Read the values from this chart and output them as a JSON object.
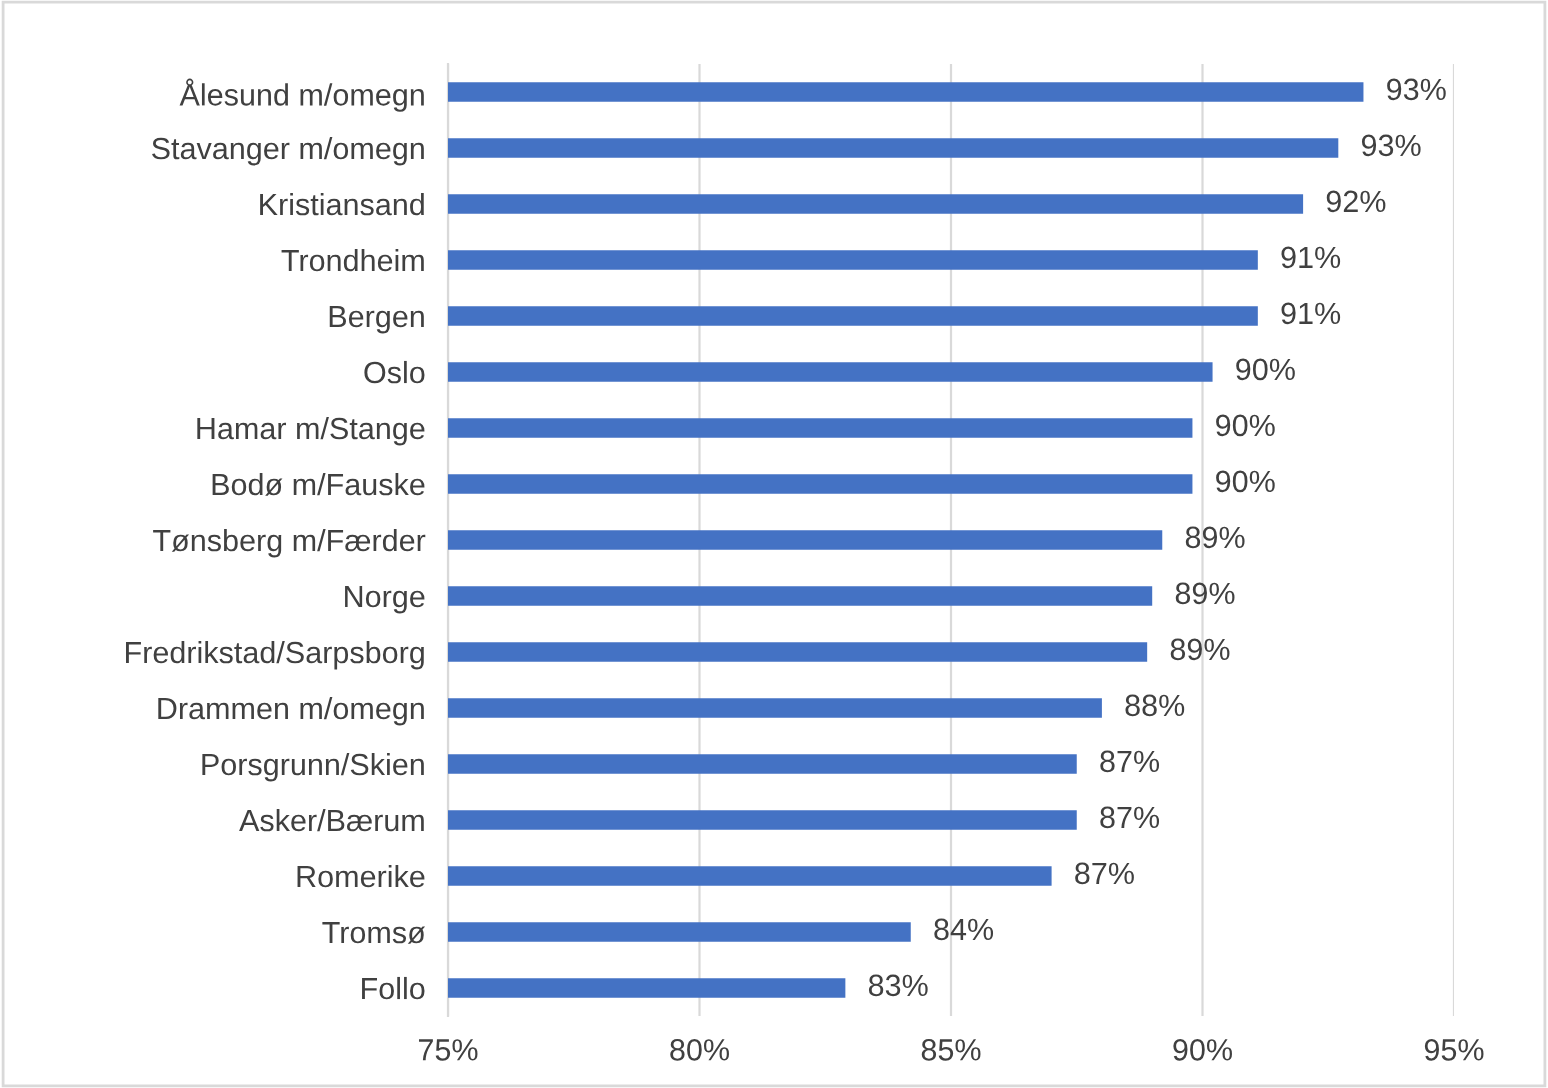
{
  "chart_data": {
    "type": "bar",
    "orientation": "horizontal",
    "categories": [
      "Ålesund m/omegn",
      "Stavanger m/omegn",
      "Kristiansand",
      "Trondheim",
      "Bergen",
      "Oslo",
      "Hamar m/Stange",
      "Bodø m/Fauske",
      "Tønsberg m/Færder",
      "Norge",
      "Fredrikstad/Sarpsborg",
      "Drammen m/omegn",
      "Porsgrunn/Skien",
      "Asker/Bærum",
      "Romerike",
      "Tromsø",
      "Follo"
    ],
    "values": [
      93.2,
      92.7,
      92.0,
      91.1,
      91.1,
      90.2,
      89.8,
      89.8,
      89.2,
      89.0,
      88.9,
      88.0,
      87.5,
      87.5,
      87.0,
      84.2,
      82.9
    ],
    "value_labels": [
      "93%",
      "93%",
      "92%",
      "91%",
      "91%",
      "90%",
      "90%",
      "90%",
      "89%",
      "89%",
      "89%",
      "88%",
      "87%",
      "87%",
      "87%",
      "84%",
      "83%"
    ],
    "color": "#4472c4",
    "xlim": [
      75,
      95
    ],
    "xticks": [
      {
        "value": 75,
        "label": "75%"
      },
      {
        "value": 80,
        "label": "80%"
      },
      {
        "value": 85,
        "label": "85%"
      },
      {
        "value": 90,
        "label": "90%"
      },
      {
        "value": 95,
        "label": "95%"
      }
    ],
    "grid": "x",
    "legend": false
  }
}
